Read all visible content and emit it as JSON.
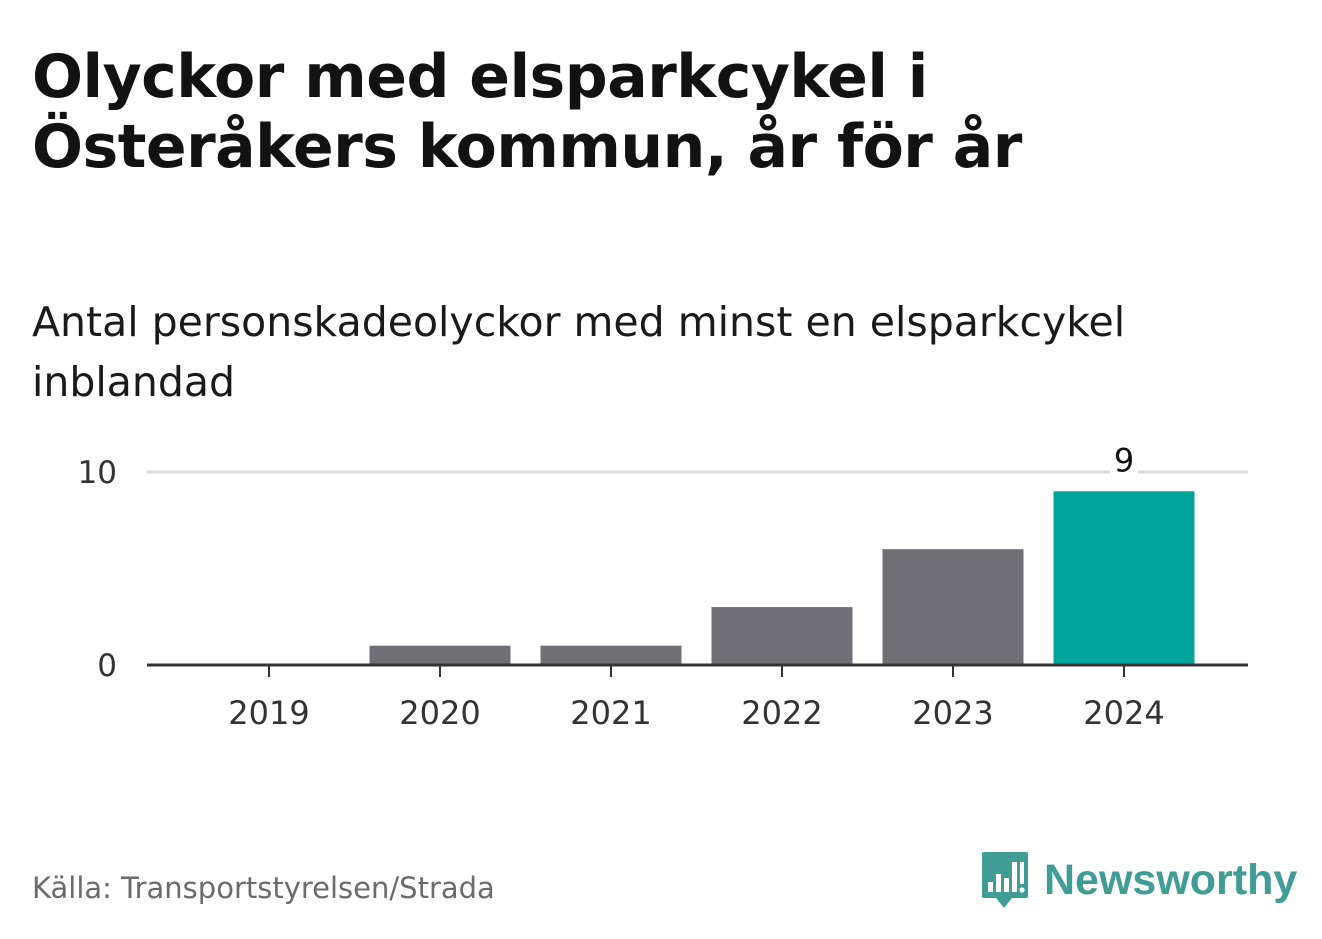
{
  "header": {
    "title": "Olyckor med elsparkcykel i Österåkers kommun, år för år",
    "subtitle": "Antal personskadeolyckor med minst en elsparkcykel inblandad"
  },
  "footer": {
    "source": "Källa: Transportstyrelsen/Strada",
    "brand_name": "Newsworthy",
    "brand_icon": "bar-chart-speech-bubble-icon"
  },
  "colors": {
    "bar_default": "#706f75",
    "bar_highlight": "#00a49a",
    "gridline": "#d9d9d9",
    "axis": "#333333",
    "brand": "#3f9d96"
  },
  "chart_data": {
    "type": "bar",
    "categories": [
      "2019",
      "2020",
      "2021",
      "2022",
      "2023",
      "2024"
    ],
    "values": [
      0,
      1,
      1,
      3,
      6,
      9
    ],
    "highlight_index": 5,
    "data_labels": [
      {
        "index": 5,
        "text": "9"
      }
    ],
    "yticks": [
      {
        "value": 0,
        "label": "0"
      },
      {
        "value": 10,
        "label": "10"
      }
    ],
    "ylim": [
      0,
      10
    ],
    "grid": true,
    "legend": "none"
  }
}
